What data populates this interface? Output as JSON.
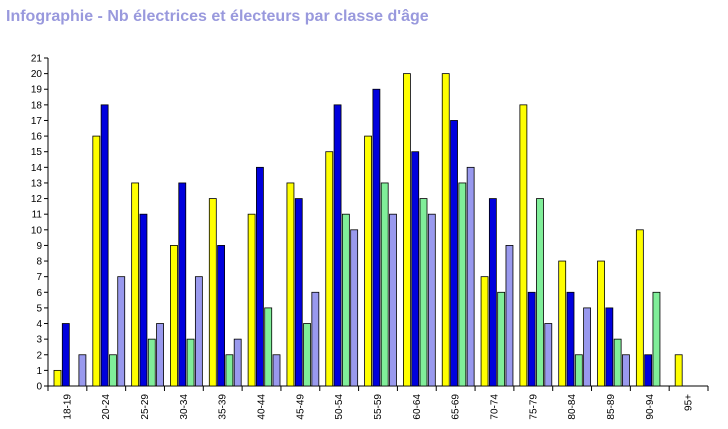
{
  "chart_data": {
    "type": "bar",
    "title": "Infographie - Nb électrices et électeurs par classe d'âge",
    "categories": [
      "18-19",
      "20-24",
      "25-29",
      "30-34",
      "35-39",
      "40-44",
      "45-49",
      "50-54",
      "55-59",
      "60-64",
      "65-69",
      "70-74",
      "75-79",
      "80-84",
      "85-89",
      "90-94",
      "95+"
    ],
    "series": [
      {
        "color": "#ffff00",
        "values": [
          1,
          16,
          13,
          9,
          12,
          11,
          13,
          15,
          16,
          20,
          20,
          7,
          18,
          8,
          8,
          10,
          2
        ]
      },
      {
        "color": "#0000dd",
        "values": [
          4,
          18,
          11,
          13,
          9,
          14,
          12,
          18,
          19,
          15,
          17,
          12,
          6,
          6,
          5,
          2,
          0
        ]
      },
      {
        "color": "#80ee99",
        "values": [
          0,
          2,
          3,
          3,
          2,
          5,
          4,
          11,
          13,
          12,
          13,
          6,
          12,
          2,
          3,
          6,
          0
        ]
      },
      {
        "color": "#9999ee",
        "values": [
          2,
          7,
          4,
          7,
          3,
          2,
          6,
          10,
          11,
          11,
          14,
          9,
          4,
          5,
          2,
          0,
          0
        ]
      }
    ],
    "ylim": [
      0,
      21
    ],
    "yticks": [
      "0",
      "1",
      "2",
      "3",
      "4",
      "5",
      "6",
      "7",
      "8",
      "9",
      "10",
      "11",
      "12",
      "13",
      "14",
      "15",
      "16",
      "17",
      "18",
      "19",
      "20",
      "21"
    ],
    "grid": false,
    "legend": "none"
  }
}
